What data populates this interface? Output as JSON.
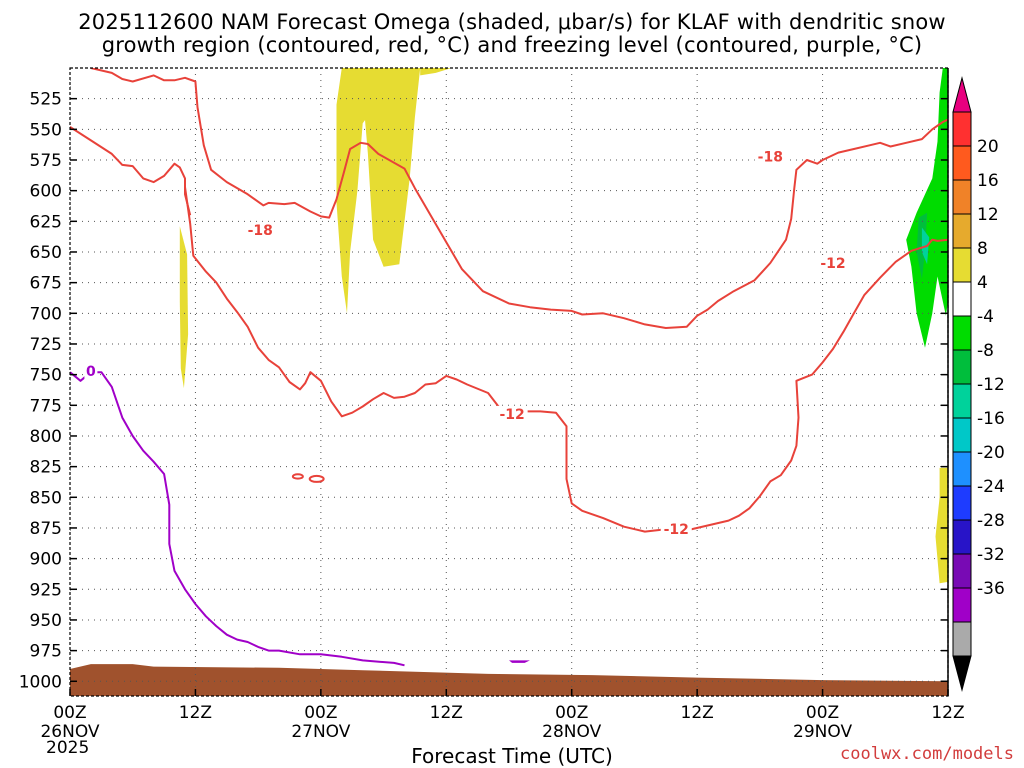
{
  "title_line1": "2025112600 NAM Forecast Omega (shaded, μbar/s) for KLAF with dendritic snow",
  "title_line2": "growth region (contoured, red, °C) and freezing level (contoured, purple, °C)",
  "credit": "coolwx.com/models",
  "chart_data": {
    "type": "contour",
    "x_title": "Forecast Time (UTC)",
    "year_label": "2025",
    "x_ticks": [
      {
        "hour": 0,
        "label": "00Z",
        "date": "26NOV"
      },
      {
        "hour": 12,
        "label": "12Z",
        "date": ""
      },
      {
        "hour": 24,
        "label": "00Z",
        "date": "27NOV"
      },
      {
        "hour": 36,
        "label": "12Z",
        "date": ""
      },
      {
        "hour": 48,
        "label": "00Z",
        "date": "28NOV"
      },
      {
        "hour": 60,
        "label": "12Z",
        "date": ""
      },
      {
        "hour": 72,
        "label": "00Z",
        "date": "29NOV"
      },
      {
        "hour": 84,
        "label": "12Z",
        "date": ""
      }
    ],
    "xlim": [
      0,
      84
    ],
    "y_ticks": [
      525,
      550,
      575,
      600,
      625,
      650,
      675,
      700,
      725,
      750,
      775,
      800,
      825,
      850,
      875,
      900,
      925,
      950,
      975,
      1000
    ],
    "ylim": [
      500,
      1012
    ],
    "colorbar": {
      "labels": [
        "20",
        "16",
        "12",
        "8",
        "4",
        "-4",
        "-8",
        "-12",
        "-16",
        "-20",
        "-24",
        "-28",
        "-32",
        "-36"
      ],
      "colors": [
        "#e8007f",
        "#ff3030",
        "#ff5a1e",
        "#f08228",
        "#e6aa2d",
        "#e6dc32",
        "#ffffff",
        "#00dc00",
        "#00be3c",
        "#00d29b",
        "#00c8c8",
        "#1e90ff",
        "#1e3cff",
        "#2814c8",
        "#780ab4",
        "#a000c8",
        "#aaaaaa",
        "#000000"
      ]
    },
    "contour_labels": [
      {
        "text": "-18",
        "hour": 18.2,
        "p": 632,
        "color": "#e8423a"
      },
      {
        "text": "-18",
        "hour": 67.0,
        "p": 572,
        "color": "#e8423a"
      },
      {
        "text": "-12",
        "hour": 42.3,
        "p": 782,
        "color": "#e8423a"
      },
      {
        "text": "-12",
        "hour": 58.0,
        "p": 876,
        "color": "#e8423a"
      },
      {
        "text": "-12",
        "hour": 73.0,
        "p": 659,
        "color": "#e8423a"
      },
      {
        "text": "0",
        "hour": 2.0,
        "p": 747,
        "color": "#a000c8"
      }
    ],
    "contours": [
      {
        "name": "dgz -18 upper",
        "color": "#e8423a",
        "points": [
          [
            2,
            500
          ],
          [
            4,
            504
          ],
          [
            5,
            509
          ],
          [
            6,
            511
          ],
          [
            8,
            506
          ],
          [
            9,
            510
          ],
          [
            10,
            510
          ],
          [
            11,
            508
          ],
          [
            12,
            511
          ],
          [
            12.2,
            532
          ],
          [
            12.8,
            563
          ],
          [
            13.5,
            583
          ],
          [
            15,
            593
          ],
          [
            17,
            603
          ],
          [
            18,
            609
          ],
          [
            18.5,
            612
          ],
          [
            19,
            610
          ],
          [
            20.5,
            611
          ],
          [
            21.5,
            610
          ],
          [
            23,
            617
          ],
          [
            24,
            621
          ],
          [
            24.8,
            622
          ],
          [
            25.5,
            607
          ],
          [
            26.2,
            585
          ],
          [
            26.8,
            566
          ],
          [
            27.8,
            561
          ],
          [
            28.5,
            562
          ],
          [
            29.5,
            570
          ],
          [
            32,
            582
          ],
          [
            33,
            598
          ],
          [
            34.5,
            620
          ],
          [
            36,
            642
          ],
          [
            37.5,
            664
          ],
          [
            39.5,
            682
          ],
          [
            42,
            692
          ],
          [
            44,
            695
          ],
          [
            46,
            697
          ],
          [
            48,
            698
          ],
          [
            49,
            701
          ],
          [
            51,
            700
          ],
          [
            53,
            704
          ],
          [
            55,
            709
          ],
          [
            57,
            712
          ],
          [
            59,
            711
          ],
          [
            60,
            702
          ],
          [
            61,
            697
          ],
          [
            62,
            690
          ],
          [
            63.5,
            682
          ],
          [
            65.5,
            673
          ],
          [
            67,
            659
          ],
          [
            68.5,
            640
          ],
          [
            69,
            623
          ],
          [
            69.3,
            598
          ],
          [
            69.5,
            583
          ],
          [
            70.5,
            575
          ],
          [
            71.5,
            578
          ],
          [
            72,
            575
          ],
          [
            73.5,
            569
          ],
          [
            75,
            566
          ],
          [
            76.5,
            563
          ],
          [
            77.5,
            561
          ],
          [
            78.5,
            564
          ],
          [
            80,
            561
          ],
          [
            81.5,
            558
          ],
          [
            82.5,
            550
          ],
          [
            83.5,
            544
          ],
          [
            84,
            542
          ]
        ]
      },
      {
        "name": "dgz -18 left",
        "color": "#e8423a",
        "points": [
          [
            0,
            548
          ],
          [
            2,
            559
          ],
          [
            4,
            570
          ],
          [
            5,
            579
          ],
          [
            6,
            580
          ],
          [
            7,
            590
          ],
          [
            8,
            593
          ],
          [
            9,
            588
          ],
          [
            10,
            578
          ],
          [
            10.5,
            581
          ],
          [
            11,
            590
          ],
          [
            11,
            603
          ],
          [
            11.5,
            620
          ]
        ]
      },
      {
        "name": "dgz -12 lower",
        "color": "#e8423a",
        "points": [
          [
            11,
            597
          ],
          [
            11.5,
            627
          ],
          [
            11.8,
            653
          ],
          [
            13,
            666
          ],
          [
            14,
            675
          ],
          [
            15,
            688
          ],
          [
            16,
            699
          ],
          [
            17,
            711
          ],
          [
            18,
            728
          ],
          [
            19,
            738
          ],
          [
            20,
            744
          ],
          [
            21,
            756
          ],
          [
            22,
            762
          ],
          [
            22.5,
            757
          ],
          [
            23,
            748
          ],
          [
            24,
            755
          ],
          [
            25,
            772
          ],
          [
            26,
            784
          ],
          [
            27,
            781
          ],
          [
            28,
            776
          ],
          [
            29,
            770
          ],
          [
            30,
            765
          ],
          [
            31,
            769
          ],
          [
            32,
            768
          ],
          [
            33,
            765
          ],
          [
            34,
            758
          ],
          [
            35,
            757
          ],
          [
            36,
            751
          ],
          [
            37,
            754
          ],
          [
            38,
            758
          ],
          [
            40,
            765
          ],
          [
            41,
            776
          ],
          [
            42,
            780
          ],
          [
            45,
            780
          ],
          [
            46.5,
            781
          ],
          [
            47.5,
            792
          ],
          [
            47.5,
            835
          ],
          [
            48,
            855
          ],
          [
            49,
            861
          ],
          [
            51,
            867
          ],
          [
            53,
            874
          ],
          [
            55,
            878
          ],
          [
            57,
            876
          ],
          [
            59,
            877
          ],
          [
            61,
            873
          ],
          [
            63,
            869
          ],
          [
            64,
            865
          ],
          [
            65,
            859
          ],
          [
            66,
            849
          ],
          [
            67,
            837
          ],
          [
            68,
            832
          ],
          [
            69,
            820
          ],
          [
            69.5,
            808
          ],
          [
            69.7,
            785
          ],
          [
            69.5,
            755
          ],
          [
            71,
            750
          ],
          [
            72,
            740
          ],
          [
            73,
            729
          ],
          [
            74,
            715
          ],
          [
            75,
            700
          ],
          [
            76,
            685
          ],
          [
            77.5,
            671
          ],
          [
            79,
            658
          ],
          [
            80.5,
            649
          ],
          [
            82,
            645
          ],
          [
            82.5,
            640
          ],
          [
            83,
            641
          ],
          [
            84,
            640
          ]
        ]
      },
      {
        "name": "freezing level 0C",
        "color": "#a000c8",
        "points": [
          [
            0,
            748
          ],
          [
            1,
            755
          ],
          [
            2,
            748
          ],
          [
            3,
            748
          ],
          [
            4,
            760
          ],
          [
            5,
            785
          ],
          [
            6,
            800
          ],
          [
            7,
            812
          ],
          [
            8,
            821
          ],
          [
            9,
            831
          ],
          [
            9.5,
            856
          ],
          [
            9.5,
            888
          ],
          [
            10,
            910
          ],
          [
            11,
            925
          ],
          [
            12,
            937
          ],
          [
            13,
            947
          ],
          [
            14,
            955
          ],
          [
            15,
            962
          ],
          [
            16,
            966
          ],
          [
            17,
            968
          ],
          [
            18,
            972
          ],
          [
            19,
            975
          ],
          [
            20,
            975
          ],
          [
            22,
            978
          ],
          [
            24,
            978
          ],
          [
            26,
            980
          ],
          [
            28,
            983
          ],
          [
            31,
            985
          ],
          [
            32,
            987
          ]
        ]
      }
    ],
    "shaded_regions": [
      {
        "name": "yellow 4-8 left",
        "color": "#e6dc32",
        "points": [
          [
            10.5,
            629
          ],
          [
            11.2,
            652
          ],
          [
            11.3,
            717
          ],
          [
            10.9,
            761
          ],
          [
            10.6,
            745
          ],
          [
            10.5,
            690
          ]
        ]
      },
      {
        "name": "yellow 4-8 upper A",
        "color": "#e6dc32",
        "points": [
          [
            26,
            500
          ],
          [
            31,
            500
          ],
          [
            30,
            522
          ],
          [
            28,
            545
          ],
          [
            27.5,
            600
          ],
          [
            26.8,
            650
          ],
          [
            26.5,
            700
          ],
          [
            26,
            670
          ],
          [
            25.5,
            610
          ],
          [
            25.5,
            530
          ]
        ]
      },
      {
        "name": "yellow 4-8 upper B",
        "color": "#e6dc32",
        "points": [
          [
            27.5,
            500
          ],
          [
            33.5,
            500
          ],
          [
            33,
            540
          ],
          [
            32.5,
            590
          ],
          [
            32,
            625
          ],
          [
            31.5,
            660
          ],
          [
            30,
            662
          ],
          [
            29,
            640
          ],
          [
            28.5,
            570
          ],
          [
            28,
            520
          ]
        ]
      },
      {
        "name": "yellow 4-8 top sliver",
        "color": "#e6dc32",
        "points": [
          [
            33.5,
            500
          ],
          [
            36.5,
            500
          ],
          [
            35,
            504
          ],
          [
            33.5,
            506
          ]
        ]
      },
      {
        "name": "green -4 to -8 right",
        "color": "#00dc00",
        "points": [
          [
            83.5,
            500
          ],
          [
            84,
            500
          ],
          [
            84,
            690
          ],
          [
            83.8,
            702
          ],
          [
            83,
            670
          ],
          [
            82.5,
            700
          ],
          [
            81.8,
            728
          ],
          [
            81,
            700
          ],
          [
            80.5,
            662
          ],
          [
            80,
            640
          ],
          [
            81,
            618
          ],
          [
            82.5,
            590
          ],
          [
            83,
            560
          ],
          [
            83.2,
            520
          ]
        ]
      },
      {
        "name": "green -8 to -12 right",
        "color": "#00be3c",
        "points": [
          [
            81.2,
            622
          ],
          [
            82,
            618
          ],
          [
            81.8,
            650
          ],
          [
            81.5,
            672
          ],
          [
            81,
            650
          ]
        ]
      },
      {
        "name": "teal -12 to -16 right",
        "color": "#00d29b",
        "points": [
          [
            81.5,
            630
          ],
          [
            82.2,
            638
          ],
          [
            82,
            660
          ],
          [
            81.5,
            650
          ]
        ]
      },
      {
        "name": "yellow 4-8 right low",
        "color": "#e6dc32",
        "points": [
          [
            83.2,
            826
          ],
          [
            84,
            826
          ],
          [
            84,
            919
          ],
          [
            83.2,
            920
          ],
          [
            82.8,
            882
          ],
          [
            83.2,
            850
          ]
        ]
      },
      {
        "name": "purple low sliver",
        "color": "#a000c8",
        "points": [
          [
            42,
            983
          ],
          [
            44,
            983
          ],
          [
            43.5,
            985
          ],
          [
            42.3,
            985
          ]
        ]
      }
    ],
    "terrain_color": "#a0522d",
    "terrain": [
      [
        0,
        1012
      ],
      [
        0,
        990
      ],
      [
        2,
        986
      ],
      [
        6,
        986
      ],
      [
        8,
        988
      ],
      [
        20,
        989
      ],
      [
        28,
        991
      ],
      [
        40,
        994
      ],
      [
        50,
        995
      ],
      [
        60,
        997
      ],
      [
        72,
        999
      ],
      [
        84,
        1000
      ],
      [
        84,
        1012
      ]
    ]
  }
}
